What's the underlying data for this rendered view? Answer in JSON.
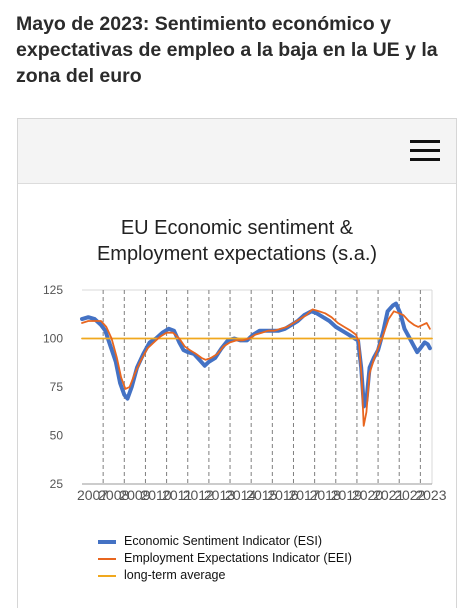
{
  "headline": "Mayo de 2023:  Sentimiento económico y expectativas de empleo a la baja en la UE y la zona del euro",
  "menu": {
    "icon": "hamburger-menu-icon"
  },
  "colors": {
    "esi": "#4472c4",
    "eei": "#e8661f",
    "average": "#f0a81e",
    "grid": "#7f7f7f",
    "axis_text": "#555555"
  },
  "chart_data": {
    "type": "line",
    "title_lines": [
      "EU Economic sentiment &",
      "Employment expectations (s.a.)"
    ],
    "ylim": [
      25,
      125
    ],
    "yticks": [
      25,
      50,
      75,
      100,
      125
    ],
    "xlim": [
      2007,
      2023.55
    ],
    "xtick_labels": [
      "2007",
      "2008",
      "2009",
      "2010",
      "2011",
      "2012",
      "2013",
      "2014",
      "2015",
      "2016",
      "2017",
      "2018",
      "2019",
      "2020",
      "2021",
      "2022",
      "2023"
    ],
    "vertical_gridlines": "dashed, yearly",
    "legend_position": "bottom",
    "series": [
      {
        "name": "Economic Sentiment Indicator (ESI)",
        "color_key": "esi",
        "points": [
          [
            2007.0,
            110
          ],
          [
            2007.3,
            111
          ],
          [
            2007.6,
            110
          ],
          [
            2007.9,
            107
          ],
          [
            2008.1,
            104
          ],
          [
            2008.35,
            96
          ],
          [
            2008.6,
            88
          ],
          [
            2008.8,
            77
          ],
          [
            2009.0,
            71
          ],
          [
            2009.15,
            69
          ],
          [
            2009.35,
            75
          ],
          [
            2009.6,
            85
          ],
          [
            2009.9,
            92
          ],
          [
            2010.2,
            98
          ],
          [
            2010.5,
            100
          ],
          [
            2010.8,
            103
          ],
          [
            2011.1,
            105
          ],
          [
            2011.35,
            104
          ],
          [
            2011.6,
            98
          ],
          [
            2011.8,
            94
          ],
          [
            2012.0,
            93
          ],
          [
            2012.3,
            92
          ],
          [
            2012.55,
            89
          ],
          [
            2012.8,
            86
          ],
          [
            2013.0,
            88
          ],
          [
            2013.3,
            90
          ],
          [
            2013.6,
            95
          ],
          [
            2013.9,
            99
          ],
          [
            2014.2,
            100
          ],
          [
            2014.5,
            99
          ],
          [
            2014.8,
            99
          ],
          [
            2015.1,
            102
          ],
          [
            2015.4,
            104
          ],
          [
            2015.7,
            104
          ],
          [
            2016.0,
            104
          ],
          [
            2016.3,
            104
          ],
          [
            2016.6,
            105
          ],
          [
            2016.9,
            107
          ],
          [
            2017.2,
            109
          ],
          [
            2017.5,
            112
          ],
          [
            2017.85,
            114
          ],
          [
            2018.1,
            113
          ],
          [
            2018.4,
            111
          ],
          [
            2018.7,
            109
          ],
          [
            2019.0,
            106
          ],
          [
            2019.3,
            104
          ],
          [
            2019.6,
            102
          ],
          [
            2019.9,
            100
          ],
          [
            2020.05,
            99
          ],
          [
            2020.2,
            85
          ],
          [
            2020.33,
            65
          ],
          [
            2020.45,
            68
          ],
          [
            2020.6,
            85
          ],
          [
            2020.8,
            90
          ],
          [
            2021.0,
            94
          ],
          [
            2021.25,
            104
          ],
          [
            2021.45,
            114
          ],
          [
            2021.7,
            117
          ],
          [
            2021.85,
            118
          ],
          [
            2022.05,
            113
          ],
          [
            2022.25,
            105
          ],
          [
            2022.5,
            100
          ],
          [
            2022.7,
            96
          ],
          [
            2022.85,
            93
          ],
          [
            2023.0,
            95
          ],
          [
            2023.2,
            98
          ],
          [
            2023.35,
            97
          ],
          [
            2023.45,
            95
          ]
        ]
      },
      {
        "name": "Employment Expectations Indicator (EEI)",
        "color_key": "eei",
        "points": [
          [
            2007.0,
            108
          ],
          [
            2007.3,
            109
          ],
          [
            2007.6,
            109
          ],
          [
            2007.9,
            109
          ],
          [
            2008.15,
            106
          ],
          [
            2008.4,
            100
          ],
          [
            2008.65,
            90
          ],
          [
            2008.85,
            80
          ],
          [
            2009.05,
            74
          ],
          [
            2009.25,
            75
          ],
          [
            2009.5,
            82
          ],
          [
            2009.8,
            89
          ],
          [
            2010.1,
            95
          ],
          [
            2010.4,
            98
          ],
          [
            2010.7,
            101
          ],
          [
            2011.0,
            103
          ],
          [
            2011.3,
            103
          ],
          [
            2011.6,
            100
          ],
          [
            2011.85,
            96
          ],
          [
            2012.1,
            94
          ],
          [
            2012.4,
            92
          ],
          [
            2012.65,
            90
          ],
          [
            2012.85,
            89
          ],
          [
            2013.1,
            90
          ],
          [
            2013.4,
            92
          ],
          [
            2013.7,
            96
          ],
          [
            2014.0,
            98
          ],
          [
            2014.3,
            99
          ],
          [
            2014.6,
            99
          ],
          [
            2014.9,
            100
          ],
          [
            2015.2,
            102
          ],
          [
            2015.5,
            103
          ],
          [
            2015.8,
            104
          ],
          [
            2016.1,
            104
          ],
          [
            2016.4,
            105
          ],
          [
            2016.7,
            106
          ],
          [
            2017.0,
            108
          ],
          [
            2017.3,
            110
          ],
          [
            2017.6,
            112
          ],
          [
            2017.9,
            115
          ],
          [
            2018.2,
            114
          ],
          [
            2018.5,
            113
          ],
          [
            2018.8,
            111
          ],
          [
            2019.1,
            108
          ],
          [
            2019.4,
            106
          ],
          [
            2019.7,
            104
          ],
          [
            2019.95,
            102
          ],
          [
            2020.1,
            98
          ],
          [
            2020.22,
            80
          ],
          [
            2020.32,
            55
          ],
          [
            2020.45,
            62
          ],
          [
            2020.6,
            82
          ],
          [
            2020.8,
            89
          ],
          [
            2021.0,
            95
          ],
          [
            2021.25,
            102
          ],
          [
            2021.5,
            110
          ],
          [
            2021.75,
            114
          ],
          [
            2022.0,
            113
          ],
          [
            2022.2,
            112
          ],
          [
            2022.45,
            109
          ],
          [
            2022.7,
            107
          ],
          [
            2022.9,
            106
          ],
          [
            2023.1,
            107
          ],
          [
            2023.3,
            108
          ],
          [
            2023.45,
            105
          ]
        ]
      },
      {
        "name": "long-term average",
        "color_key": "average",
        "points": [
          [
            2007.0,
            100
          ],
          [
            2023.55,
            100
          ]
        ]
      }
    ]
  }
}
